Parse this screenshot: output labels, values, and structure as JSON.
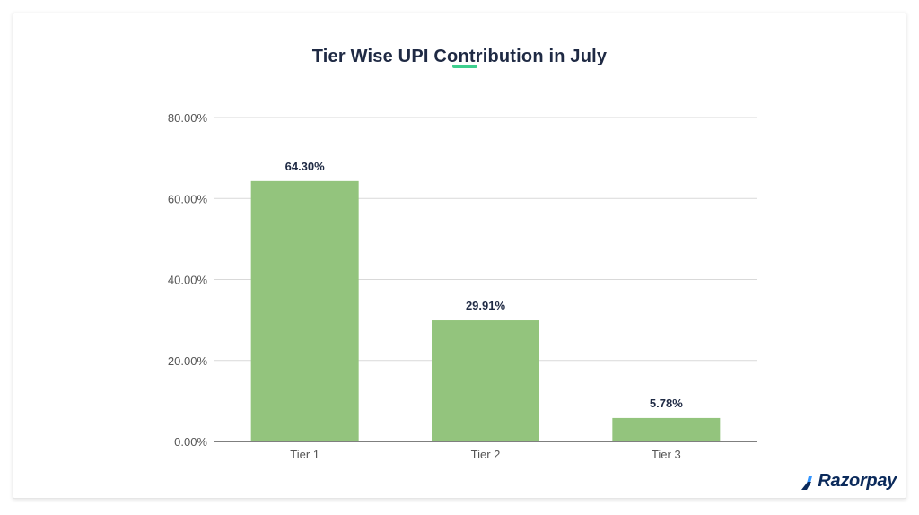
{
  "brand": {
    "name": "Razorpay",
    "color": "#0b2a5b",
    "accent": "#3395ff"
  },
  "colors": {
    "title_underline": "#3ecf8e",
    "bar": "#93c47d",
    "grid": "#d9d9d9",
    "axis": "#333333",
    "tick_text": "#555555",
    "label_text": "#1f2a44"
  },
  "chart_data": {
    "type": "bar",
    "title": "Tier Wise UPI Contribution in July",
    "categories": [
      "Tier 1",
      "Tier 2",
      "Tier 3"
    ],
    "values": [
      64.3,
      29.91,
      5.78
    ],
    "value_labels": [
      "64.30%",
      "29.91%",
      "5.78%"
    ],
    "ylim": [
      0,
      80
    ],
    "yticks": [
      0,
      20,
      40,
      60,
      80
    ],
    "ytick_labels": [
      "0.00%",
      "20.00%",
      "40.00%",
      "60.00%",
      "80.00%"
    ],
    "xlabel": "",
    "ylabel": "",
    "grid": true,
    "legend": "none"
  }
}
